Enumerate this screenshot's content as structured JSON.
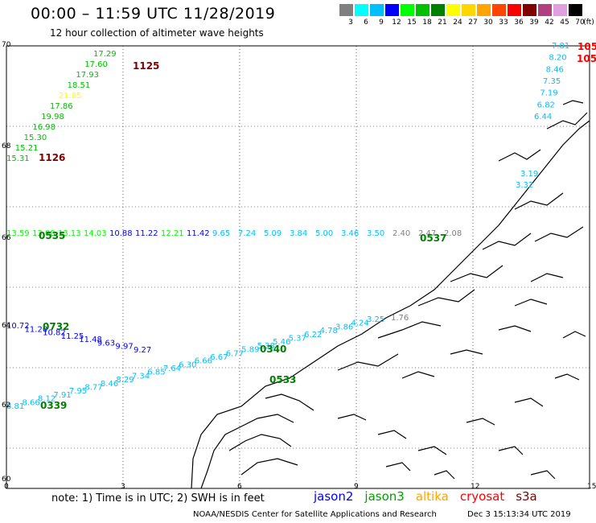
{
  "header": {
    "title": "00:00 – 11:59 UTC 11/28/2019",
    "subtitle": "12 hour collection of altimeter wave heights"
  },
  "legend": {
    "unit": "(ft)",
    "bins": [
      {
        "label": "3",
        "color": "#808080"
      },
      {
        "label": "6",
        "color": "#00ffff"
      },
      {
        "label": "9",
        "color": "#00bfff"
      },
      {
        "label": "12",
        "color": "#0000ff"
      },
      {
        "label": "15",
        "color": "#00ff00"
      },
      {
        "label": "18",
        "color": "#00c000"
      },
      {
        "label": "21",
        "color": "#008000"
      },
      {
        "label": "24",
        "color": "#ffff00"
      },
      {
        "label": "27",
        "color": "#ffd700"
      },
      {
        "label": "30",
        "color": "#ffa500"
      },
      {
        "label": "33",
        "color": "#ff4500"
      },
      {
        "label": "36",
        "color": "#ff0000"
      },
      {
        "label": "39",
        "color": "#800000"
      },
      {
        "label": "42",
        "color": "#b0407f"
      },
      {
        "label": "45",
        "color": "#e0a0e0"
      },
      {
        "label": "70",
        "color": "#000000"
      }
    ]
  },
  "axes": {
    "lat_ticks": [
      "70",
      "68",
      "66",
      "64",
      "62",
      "60"
    ],
    "lon_ticks": [
      "0",
      "3",
      "6",
      "9",
      "12",
      "15"
    ]
  },
  "tracks": [
    {
      "id": "track-nw",
      "color": "#00c000",
      "dir": "up",
      "values": [
        "15.31",
        "15.21",
        "15.30",
        "16.98",
        "19.98",
        "17.86",
        "21.85",
        "18.51",
        "17.93",
        "17.60",
        "17.29"
      ],
      "time": "1125",
      "time2": "1126"
    },
    {
      "id": "track-66",
      "color": "#00c000",
      "dir": "east",
      "values": [
        "13.59",
        "13.08",
        "13.13",
        "14.03",
        "10.88",
        "11.22",
        "12.21",
        "11.42",
        "9.65",
        "7.24",
        "5.09",
        "3.84",
        "5.00",
        "3.46",
        "3.50",
        "2.40",
        "2.47",
        "2.08"
      ],
      "time": "0535",
      "time2": "0537"
    },
    {
      "id": "track-64",
      "color": "#0000ff",
      "dir": "east",
      "values": [
        "10.72",
        "11.20",
        "10.82",
        "11.25",
        "11.48",
        "9.63",
        "9.97",
        "9.27"
      ],
      "time": "0732"
    },
    {
      "id": "track-sw",
      "color": "#00bfff",
      "dir": "up",
      "values": [
        "8.81",
        "8.66",
        "8.12",
        "7.91",
        "7.95",
        "8.77",
        "8.46",
        "8.29",
        "7.34",
        "6.85",
        "7.64",
        "6.30",
        "6.66",
        "6.67",
        "6.77",
        "5.89",
        "5.38",
        "5.46",
        "5.37",
        "6.22",
        "4.78",
        "3.86",
        "4.24",
        "3.25"
      ],
      "time": "0339",
      "time2": "0340"
    },
    {
      "id": "track-ne",
      "color": "#00bfff",
      "dir": "down",
      "values": [
        "7.81",
        "8.20",
        "8.46",
        "7.35",
        "7.19",
        "6.82",
        "6.44"
      ],
      "time": "105"
    },
    {
      "id": "track-lofoten",
      "color": "#00bfff",
      "values": [
        "3.19",
        "3.32"
      ]
    },
    {
      "id": "track-coast",
      "color": "#808080",
      "values": [
        "1.76"
      ],
      "time": "0533"
    }
  ],
  "footer": {
    "note": "note:  1) Time is in UTC;  2) SWH is in feet",
    "satellites": [
      {
        "name": "jason2",
        "color": "#0000ff"
      },
      {
        "name": "jason3",
        "color": "#00a000"
      },
      {
        "name": "altika",
        "color": "#ffa500"
      },
      {
        "name": "cryosat",
        "color": "#ff0000"
      },
      {
        "name": "s3a",
        "color": "#800000"
      }
    ],
    "credit": "NOAA/NESDIS Center for Satellite Applications and Research",
    "timestamp": "Dec  3 15:13:34 UTC 2019"
  }
}
